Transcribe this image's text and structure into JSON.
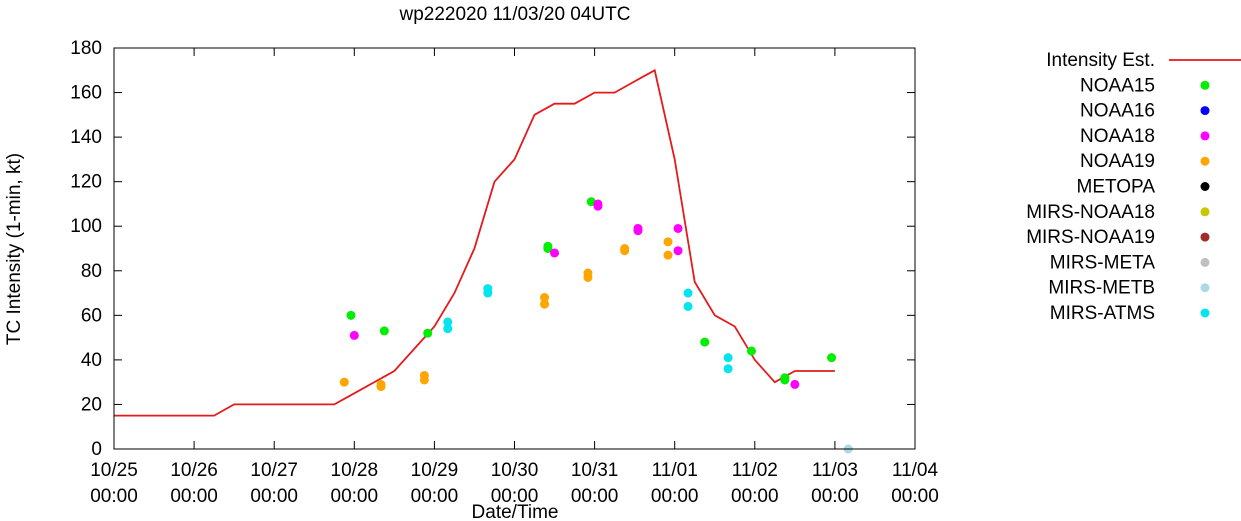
{
  "chart_data": {
    "type": "line",
    "title": "wp222020 11/03/20 04UTC",
    "xlabel": "Date/Time",
    "ylabel": "TC Intensity (1-min, kt)",
    "ylim": [
      0,
      180
    ],
    "yticks": [
      0,
      20,
      40,
      60,
      80,
      100,
      120,
      140,
      160,
      180
    ],
    "xlim": [
      "2020-10-25T00:00",
      "2020-11-04T00:00"
    ],
    "xticks": [
      {
        "date": "2020-10-25T00:00",
        "line1": "10/25",
        "line2": "00:00"
      },
      {
        "date": "2020-10-26T00:00",
        "line1": "10/26",
        "line2": "00:00"
      },
      {
        "date": "2020-10-27T00:00",
        "line1": "10/27",
        "line2": "00:00"
      },
      {
        "date": "2020-10-28T00:00",
        "line1": "10/28",
        "line2": "00:00"
      },
      {
        "date": "2020-10-29T00:00",
        "line1": "10/29",
        "line2": "00:00"
      },
      {
        "date": "2020-10-30T00:00",
        "line1": "10/30",
        "line2": "00:00"
      },
      {
        "date": "2020-10-31T00:00",
        "line1": "10/31",
        "line2": "00:00"
      },
      {
        "date": "2020-11-01T00:00",
        "line1": "11/01",
        "line2": "00:00"
      },
      {
        "date": "2020-11-02T00:00",
        "line1": "11/02",
        "line2": "00:00"
      },
      {
        "date": "2020-11-03T00:00",
        "line1": "11/03",
        "line2": "00:00"
      },
      {
        "date": "2020-11-04T00:00",
        "line1": "11/04",
        "line2": "00:00"
      }
    ],
    "grid": false,
    "legend_position": "right",
    "series": [
      {
        "name": "Intensity Est.",
        "kind": "line",
        "color": "#e41a1c",
        "points": [
          {
            "x": "2020-10-25T00:00",
            "y": 15
          },
          {
            "x": "2020-10-26T00:00",
            "y": 15
          },
          {
            "x": "2020-10-26T06:00",
            "y": 15
          },
          {
            "x": "2020-10-26T12:00",
            "y": 20
          },
          {
            "x": "2020-10-27T00:00",
            "y": 20
          },
          {
            "x": "2020-10-27T12:00",
            "y": 20
          },
          {
            "x": "2020-10-27T18:00",
            "y": 20
          },
          {
            "x": "2020-10-28T00:00",
            "y": 25
          },
          {
            "x": "2020-10-28T12:00",
            "y": 35
          },
          {
            "x": "2020-10-29T00:00",
            "y": 55
          },
          {
            "x": "2020-10-29T06:00",
            "y": 70
          },
          {
            "x": "2020-10-29T12:00",
            "y": 90
          },
          {
            "x": "2020-10-29T18:00",
            "y": 120
          },
          {
            "x": "2020-10-30T00:00",
            "y": 130
          },
          {
            "x": "2020-10-30T06:00",
            "y": 150
          },
          {
            "x": "2020-10-30T12:00",
            "y": 155
          },
          {
            "x": "2020-10-30T18:00",
            "y": 155
          },
          {
            "x": "2020-10-31T00:00",
            "y": 160
          },
          {
            "x": "2020-10-31T06:00",
            "y": 160
          },
          {
            "x": "2020-10-31T12:00",
            "y": 165
          },
          {
            "x": "2020-10-31T18:00",
            "y": 170
          },
          {
            "x": "2020-11-01T00:00",
            "y": 130
          },
          {
            "x": "2020-11-01T06:00",
            "y": 75
          },
          {
            "x": "2020-11-01T12:00",
            "y": 60
          },
          {
            "x": "2020-11-01T18:00",
            "y": 55
          },
          {
            "x": "2020-11-02T00:00",
            "y": 40
          },
          {
            "x": "2020-11-02T06:00",
            "y": 30
          },
          {
            "x": "2020-11-02T12:00",
            "y": 35
          },
          {
            "x": "2020-11-02T18:00",
            "y": 35
          },
          {
            "x": "2020-11-03T00:00",
            "y": 35
          }
        ]
      },
      {
        "name": "NOAA15",
        "kind": "points",
        "color": "#00ee00",
        "points": [
          {
            "x": "2020-10-27T23:00",
            "y": 60
          },
          {
            "x": "2020-10-28T09:00",
            "y": 53
          },
          {
            "x": "2020-10-28T22:00",
            "y": 52
          },
          {
            "x": "2020-10-30T10:00",
            "y": 91
          },
          {
            "x": "2020-10-30T10:00",
            "y": 90
          },
          {
            "x": "2020-10-30T23:00",
            "y": 111
          },
          {
            "x": "2020-11-01T09:00",
            "y": 48
          },
          {
            "x": "2020-11-01T23:00",
            "y": 44
          },
          {
            "x": "2020-11-02T09:00",
            "y": 32
          },
          {
            "x": "2020-11-02T09:00",
            "y": 31
          },
          {
            "x": "2020-11-02T23:00",
            "y": 41
          }
        ]
      },
      {
        "name": "NOAA16",
        "kind": "points",
        "color": "#0000ff",
        "points": []
      },
      {
        "name": "NOAA18",
        "kind": "points",
        "color": "#ff00ff",
        "points": [
          {
            "x": "2020-10-28T00:00",
            "y": 51
          },
          {
            "x": "2020-10-30T12:00",
            "y": 88
          },
          {
            "x": "2020-10-31T01:00",
            "y": 110
          },
          {
            "x": "2020-10-31T01:00",
            "y": 109
          },
          {
            "x": "2020-10-31T13:00",
            "y": 99
          },
          {
            "x": "2020-10-31T13:00",
            "y": 98
          },
          {
            "x": "2020-11-01T01:00",
            "y": 99
          },
          {
            "x": "2020-11-01T01:00",
            "y": 89
          },
          {
            "x": "2020-11-02T12:00",
            "y": 29
          }
        ]
      },
      {
        "name": "NOAA19",
        "kind": "points",
        "color": "#ffa500",
        "points": [
          {
            "x": "2020-10-27T21:00",
            "y": 30
          },
          {
            "x": "2020-10-28T08:00",
            "y": 29
          },
          {
            "x": "2020-10-28T08:00",
            "y": 28
          },
          {
            "x": "2020-10-28T21:00",
            "y": 33
          },
          {
            "x": "2020-10-28T21:00",
            "y": 31
          },
          {
            "x": "2020-10-30T09:00",
            "y": 68
          },
          {
            "x": "2020-10-30T09:00",
            "y": 65
          },
          {
            "x": "2020-10-30T22:00",
            "y": 79
          },
          {
            "x": "2020-10-30T22:00",
            "y": 77
          },
          {
            "x": "2020-10-31T09:00",
            "y": 90
          },
          {
            "x": "2020-10-31T09:00",
            "y": 89
          },
          {
            "x": "2020-10-31T22:00",
            "y": 93
          },
          {
            "x": "2020-10-31T22:00",
            "y": 87
          }
        ]
      },
      {
        "name": "METOPA",
        "kind": "points",
        "color": "#000000",
        "points": []
      },
      {
        "name": "MIRS-NOAA18",
        "kind": "points",
        "color": "#c8c800",
        "points": []
      },
      {
        "name": "MIRS-NOAA19",
        "kind": "points",
        "color": "#a52a2a",
        "points": []
      },
      {
        "name": "MIRS-META",
        "kind": "points",
        "color": "#c0c0c0",
        "points": [
          {
            "x": "2020-11-03T04:00",
            "y": 0
          }
        ]
      },
      {
        "name": "MIRS-METB",
        "kind": "points",
        "color": "#add8e6",
        "points": [
          {
            "x": "2020-11-03T04:00",
            "y": 0
          }
        ]
      },
      {
        "name": "MIRS-ATMS",
        "kind": "points",
        "color": "#00e5ee",
        "points": [
          {
            "x": "2020-10-29T04:00",
            "y": 57
          },
          {
            "x": "2020-10-29T04:00",
            "y": 54
          },
          {
            "x": "2020-10-29T16:00",
            "y": 72
          },
          {
            "x": "2020-10-29T16:00",
            "y": 70
          },
          {
            "x": "2020-11-01T04:00",
            "y": 70
          },
          {
            "x": "2020-11-01T04:00",
            "y": 64
          },
          {
            "x": "2020-11-01T16:00",
            "y": 41
          },
          {
            "x": "2020-11-01T16:00",
            "y": 36
          }
        ]
      }
    ]
  }
}
